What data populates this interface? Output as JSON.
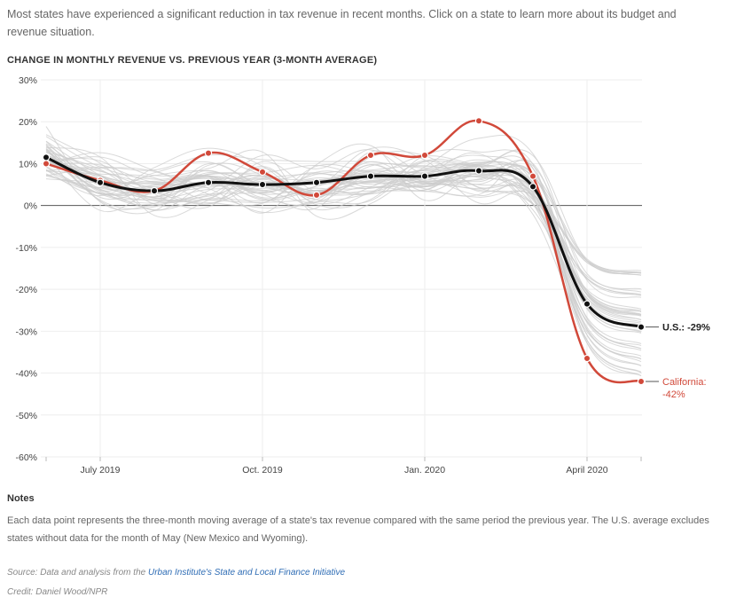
{
  "intro_text": "Most states have experienced a significant reduction in tax revenue in recent months. Click on a state to learn more about its budget and revenue situation.",
  "chart_data": {
    "type": "line",
    "title": "CHANGE IN MONTHLY REVENUE VS. PREVIOUS YEAR (3-MONTH AVERAGE)",
    "xlabel": "",
    "ylabel": "",
    "ylim": [
      -60,
      30
    ],
    "yticks": [
      30,
      20,
      10,
      0,
      -10,
      -20,
      -30,
      -40,
      -50,
      -60
    ],
    "ytick_labels": [
      "30%",
      "20%",
      "10%",
      "0%",
      "-10%",
      "-20%",
      "-30%",
      "-40%",
      "-50%",
      "-60%"
    ],
    "x": [
      "2019-06",
      "2019-07",
      "2019-08",
      "2019-09",
      "2019-10",
      "2019-11",
      "2019-12",
      "2020-01",
      "2020-02",
      "2020-03",
      "2020-04",
      "2020-05"
    ],
    "xtick_labels": [
      {
        "month": "2019-07",
        "label": "July 2019"
      },
      {
        "month": "2019-10",
        "label": "Oct. 2019"
      },
      {
        "month": "2020-01",
        "label": "Jan. 2020"
      },
      {
        "month": "2020-04",
        "label": "April 2020"
      }
    ],
    "grid": true,
    "series": [
      {
        "name": "U.S.",
        "color": "#111111",
        "values": [
          11.5,
          5.5,
          3.5,
          5.5,
          5.0,
          5.5,
          7.0,
          7.0,
          8.3,
          4.5,
          -23.5,
          -29.0
        ]
      },
      {
        "name": "California",
        "color": "#d1493a",
        "values": [
          10.0,
          6.0,
          3.5,
          12.5,
          8.0,
          2.5,
          12.0,
          12.0,
          20.2,
          7.0,
          -36.5,
          -42.0
        ]
      }
    ],
    "end_labels": [
      {
        "series": "U.S.",
        "text": "U.S.: -29%"
      },
      {
        "series": "California",
        "line1": "California:",
        "line2": "-42%"
      }
    ],
    "background_state_color": "#cccccc"
  },
  "notes": {
    "heading": "Notes",
    "body": "Each data point represents the three-month moving average of a state's tax revenue compared with the same period the previous year. The U.S. average excludes states without data for the month of May (New Mexico and Wyoming)."
  },
  "source": {
    "prefix": "Source: Data and analysis from the ",
    "link_text": "Urban Institute's State and Local Finance Initiative"
  },
  "credit": "Credit: Daniel Wood/NPR"
}
